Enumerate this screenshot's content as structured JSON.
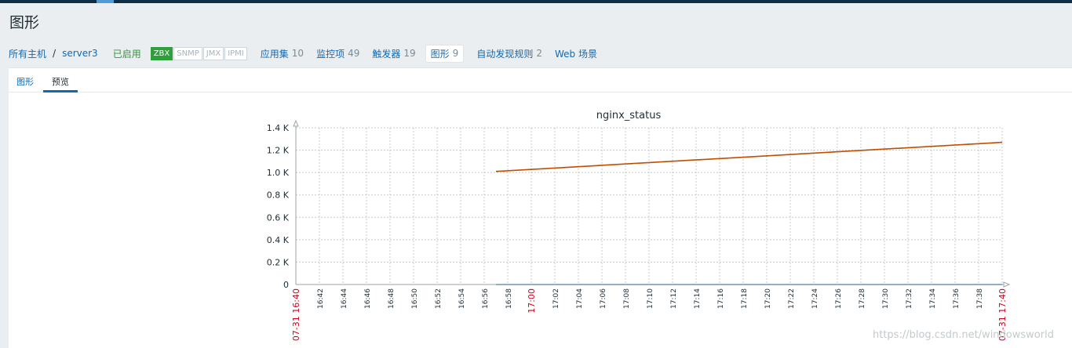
{
  "page_title": "图形",
  "breadcrumb": {
    "all_hosts": "所有主机",
    "separator": "/",
    "host": "server3"
  },
  "status": {
    "enabled": "已启用"
  },
  "availability": [
    {
      "label": "ZBX",
      "active": true
    },
    {
      "label": "SNMP",
      "active": false
    },
    {
      "label": "JMX",
      "active": false
    },
    {
      "label": "IPMI",
      "active": false
    }
  ],
  "host_nav": [
    {
      "label": "应用集",
      "count": "10"
    },
    {
      "label": "监控项",
      "count": "49"
    },
    {
      "label": "触发器",
      "count": "19"
    },
    {
      "label": "图形",
      "count": "9"
    },
    {
      "label": "自动发现规则",
      "count": "2"
    },
    {
      "label": "Web 场景",
      "count": ""
    }
  ],
  "tabs": [
    {
      "label": "图形"
    },
    {
      "label": "预览"
    }
  ],
  "watermark": "https://blog.csdn.net/windowsworld",
  "colors": {
    "series_rising": "#c44e00",
    "series_flat": "#1a7ab0",
    "accent": "#0f6ab4",
    "enabled": "#2c9a39"
  },
  "chart_data": {
    "type": "line",
    "title": "nginx_status",
    "ylim": [
      0,
      1400
    ],
    "y_ticks": [
      "0",
      "0.2 K",
      "0.4 K",
      "0.6 K",
      "0.8 K",
      "1.0 K",
      "1.2 K",
      "1.4 K"
    ],
    "x_start_label": "07-31 16:40",
    "x_end_label": "07-31 17:40",
    "x_ticks": [
      "16:42",
      "16:44",
      "16:46",
      "16:48",
      "16:50",
      "16:52",
      "16:54",
      "16:56",
      "16:58",
      "17:00",
      "17:02",
      "17:04",
      "17:06",
      "17:08",
      "17:10",
      "17:12",
      "17:14",
      "17:16",
      "17:18",
      "17:20",
      "17:22",
      "17:24",
      "17:26",
      "17:28",
      "17:30",
      "17:32",
      "17:34",
      "17:36",
      "17:38"
    ],
    "highlight_tick": "17:00",
    "grid": true,
    "series": [
      {
        "x": [
          "16:57",
          "17:40"
        ],
        "values": [
          1010,
          1270
        ]
      },
      {
        "x": [
          "16:57",
          "17:40"
        ],
        "values": [
          0,
          0
        ]
      }
    ]
  }
}
